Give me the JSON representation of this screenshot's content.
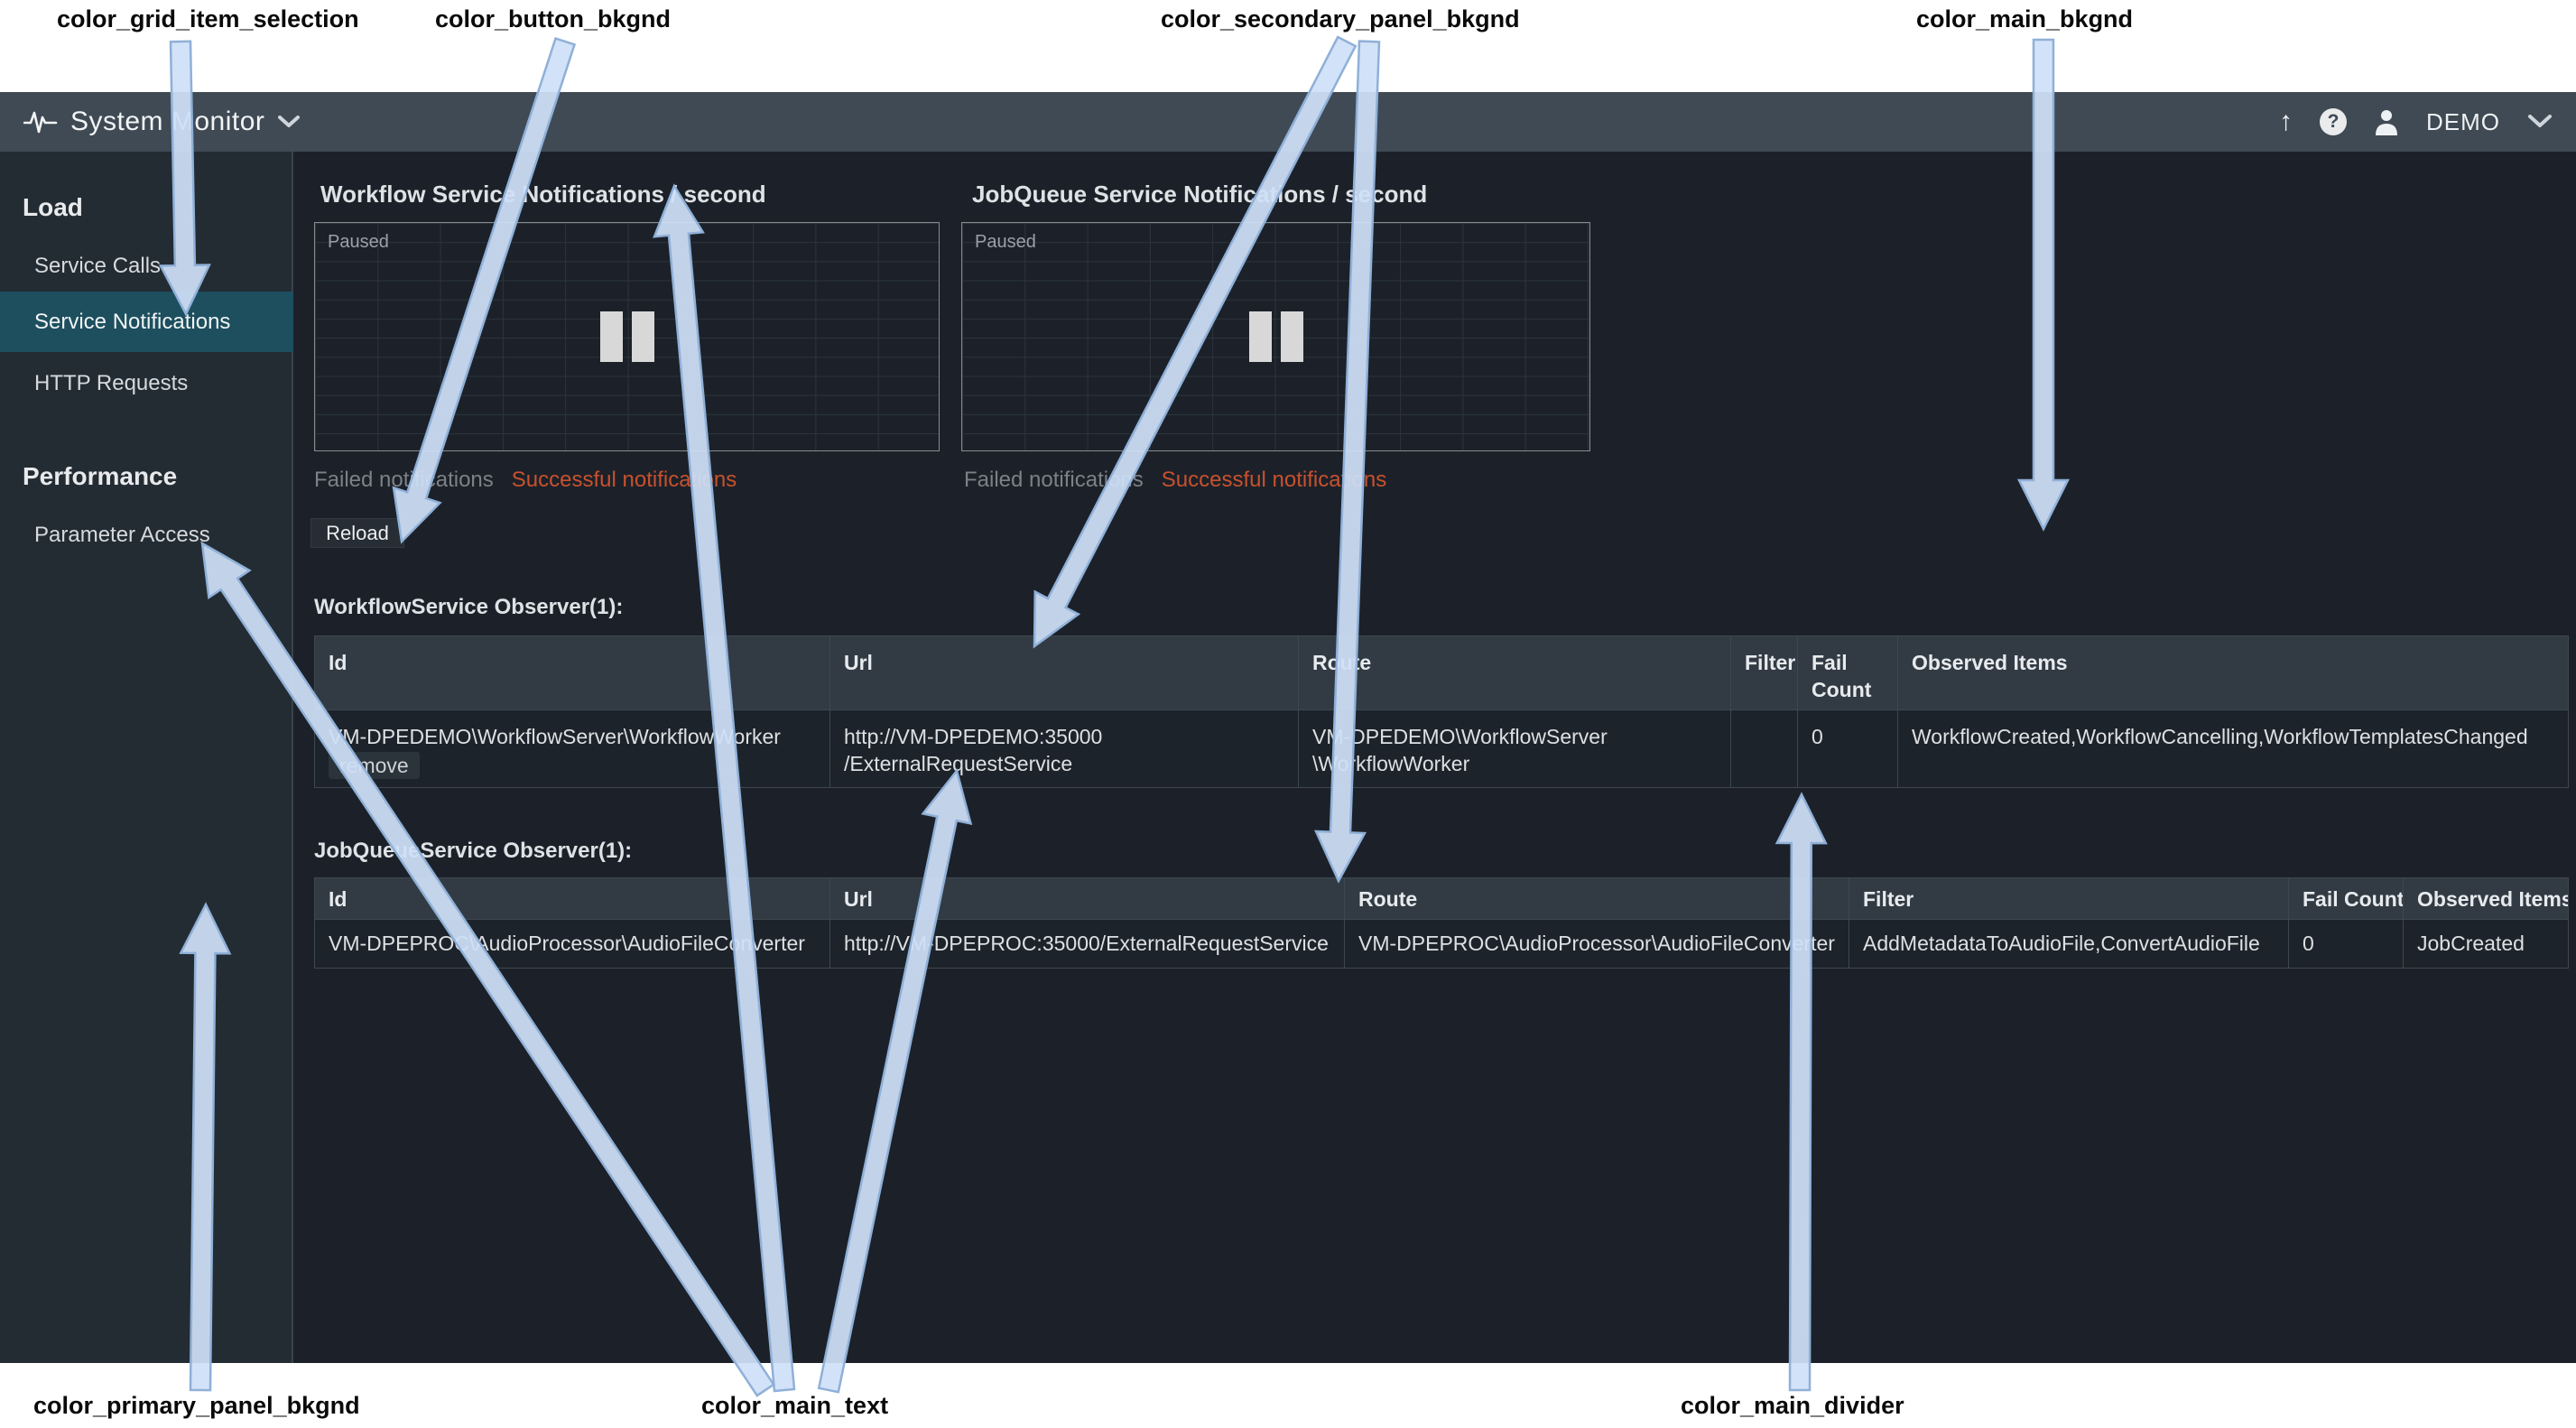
{
  "colors": {
    "color_grid_item_selection": "#1d4f5e",
    "color_button_bkgnd": "#262d35",
    "color_secondary_panel_bkgnd": "#323b44",
    "color_main_bkgnd": "#1c2129",
    "color_primary_panel_bkgnd": "#242c33",
    "color_main_text": "#dde0e3",
    "color_main_divider": "#3e4750",
    "color_topbar_bkgnd": "#3f4a54",
    "color_accent_orange": "#c7512e"
  },
  "annotations": {
    "top": [
      "color_grid_item_selection",
      "color_button_bkgnd",
      "color_secondary_panel_bkgnd",
      "color_main_bkgnd"
    ],
    "bottom": [
      "color_primary_panel_bkgnd",
      "color_main_text",
      "color_main_divider"
    ]
  },
  "topbar": {
    "title": "System Monitor",
    "user": "DEMO"
  },
  "sidebar": {
    "sections": [
      {
        "title": "Load",
        "items": [
          {
            "label": "Service Calls",
            "selected": false
          },
          {
            "label": "Service Notifications",
            "selected": true
          },
          {
            "label": "HTTP Requests",
            "selected": false
          }
        ]
      },
      {
        "title": "Performance",
        "items": [
          {
            "label": "Parameter Access",
            "selected": false
          }
        ]
      }
    ]
  },
  "toolbar": {
    "reload_label": "Reload"
  },
  "charts": [
    {
      "title": "Workflow Service Notifications / second",
      "status": "Paused",
      "legend": [
        {
          "label": "Failed notifications"
        },
        {
          "label": "Successful notifications"
        }
      ]
    },
    {
      "title": "JobQueue Service Notifications / second",
      "status": "Paused",
      "legend": [
        {
          "label": "Failed notifications"
        },
        {
          "label": "Successful notifications"
        }
      ]
    }
  ],
  "tables": [
    {
      "caption": "WorkflowService Observer(1):",
      "columns": [
        "Id",
        "Url",
        "Route",
        "Filter",
        "Fail Count",
        "Observed Items"
      ],
      "row": {
        "id": "VM-DPEDEMO\\WorkflowServer\\WorkflowWorker",
        "remove_label": "remove",
        "url_line1": "http://VM-DPEDEMO:35000",
        "url_line2": "/ExternalRequestService",
        "route_line1": "VM-DPEDEMO\\WorkflowServer",
        "route_line2": "\\WorkflowWorker",
        "filter": "",
        "fail_count": "0",
        "observed_items": "WorkflowCreated,WorkflowCancelling,WorkflowTemplatesChanged"
      }
    },
    {
      "caption": "JobQueueService Observer(1):",
      "columns": [
        "Id",
        "Url",
        "Route",
        "Filter",
        "Fail Count",
        "Observed Items"
      ],
      "row": {
        "id": "VM-DPEPROC\\AudioProcessor\\AudioFileConverter",
        "url": "http://VM-DPEPROC:35000/ExternalRequestService",
        "route": "VM-DPEPROC\\AudioProcessor\\AudioFileConverter",
        "filter": "AddMetadataToAudioFile,ConvertAudioFile",
        "fail_count": "0",
        "observed_items": "JobCreated"
      }
    }
  ]
}
